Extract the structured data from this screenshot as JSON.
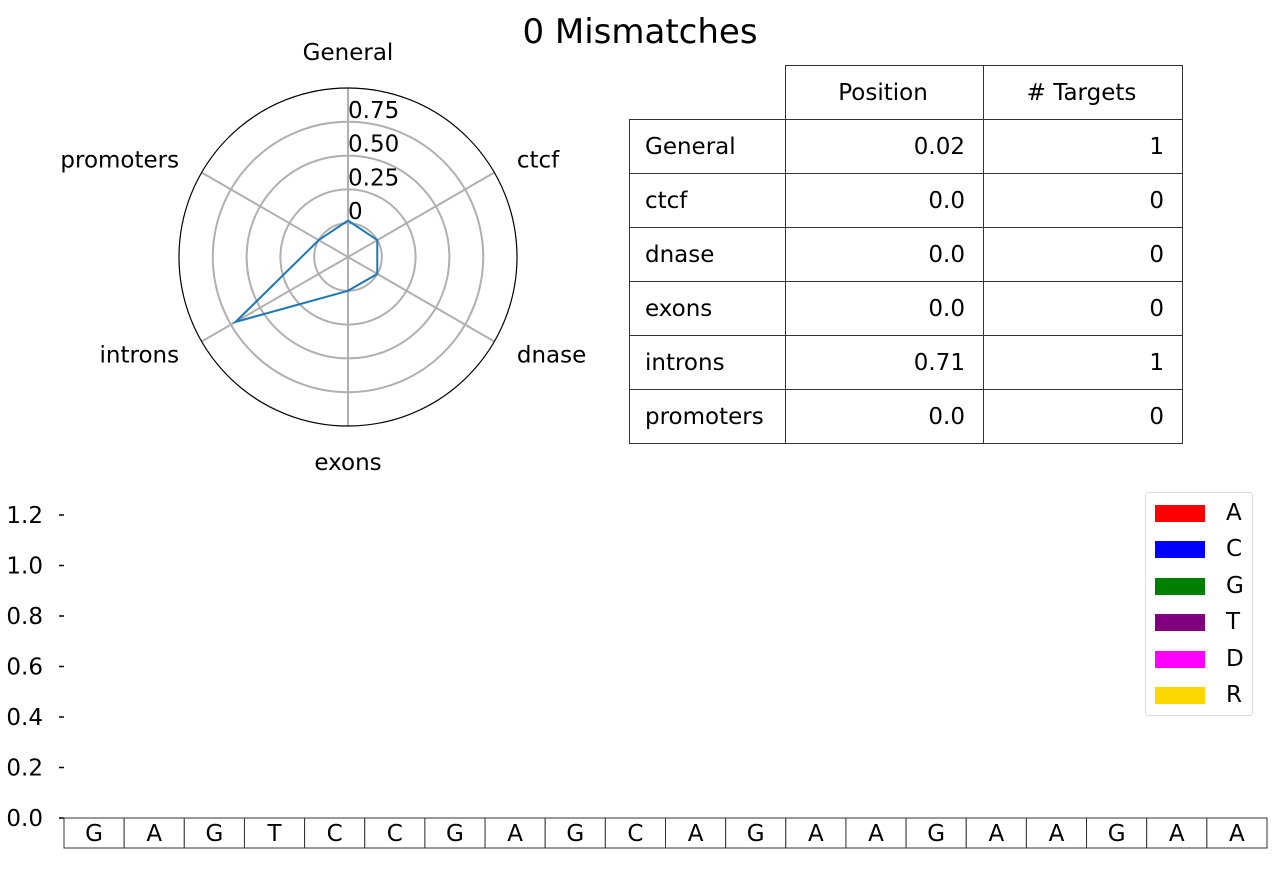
{
  "title": "0 Mismatches",
  "chart_data": [
    {
      "type": "radar",
      "axes": [
        "General",
        "ctcf",
        "dnase",
        "exons",
        "introns",
        "promoters"
      ],
      "values": [
        0.02,
        0.0,
        0.0,
        0.0,
        0.71,
        0.0
      ],
      "rticks": [
        "0",
        "0.25",
        "0.50",
        "0.75"
      ],
      "rtick_values": [
        0,
        0.25,
        0.5,
        0.75
      ],
      "rlim": [
        -0.25,
        1.0
      ],
      "line_color": "#1f77b4",
      "grid_color": "#b0b0b0"
    },
    {
      "type": "table",
      "columns": [
        "Position",
        "# Targets"
      ],
      "rows": [
        {
          "label": "General",
          "position": "0.02",
          "targets": "1"
        },
        {
          "label": "ctcf",
          "position": "0.0",
          "targets": "0"
        },
        {
          "label": "dnase",
          "position": "0.0",
          "targets": "0"
        },
        {
          "label": "exons",
          "position": "0.0",
          "targets": "0"
        },
        {
          "label": "introns",
          "position": "0.71",
          "targets": "1"
        },
        {
          "label": "promoters",
          "position": "0.0",
          "targets": "0"
        }
      ]
    },
    {
      "type": "bar",
      "categories": [
        "G",
        "A",
        "G",
        "T",
        "C",
        "C",
        "G",
        "A",
        "G",
        "C",
        "A",
        "G",
        "A",
        "A",
        "G",
        "A",
        "A",
        "G",
        "A",
        "A"
      ],
      "series": [],
      "ylim": [
        0,
        1.2
      ],
      "yticks": [
        "0.0",
        "0.2",
        "0.4",
        "0.6",
        "0.8",
        "1.0",
        "1.2"
      ],
      "ytick_values": [
        0,
        0.2,
        0.4,
        0.6,
        0.8,
        1.0,
        1.2
      ],
      "legend_position": "top-right",
      "legend": [
        {
          "label": "A",
          "color": "#ff0000"
        },
        {
          "label": "C",
          "color": "#0000ff"
        },
        {
          "label": "G",
          "color": "#008000"
        },
        {
          "label": "T",
          "color": "#800080"
        },
        {
          "label": "D",
          "color": "#ff00ff"
        },
        {
          "label": "R",
          "color": "#ffd700"
        }
      ]
    }
  ]
}
